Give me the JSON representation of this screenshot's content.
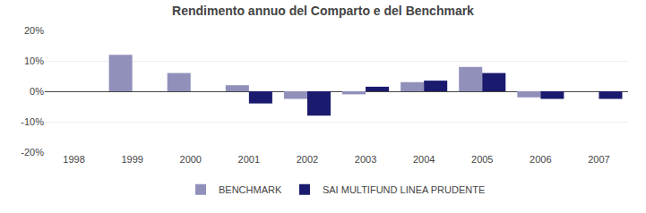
{
  "chart_data": {
    "type": "bar",
    "title": "Rendimento annuo del Comparto e del Benchmark",
    "categories": [
      "1998",
      "1999",
      "2000",
      "2001",
      "2002",
      "2003",
      "2004",
      "2005",
      "2006",
      "2007"
    ],
    "series": [
      {
        "name": "BENCHMARK",
        "color": "#9090bb",
        "values": [
          0.0,
          12.0,
          6.0,
          2.0,
          -2.5,
          -1.0,
          3.0,
          8.0,
          -2.0,
          0.0
        ]
      },
      {
        "name": "SAI MULTIFUND LINEA PRUDENTE",
        "color": "#1a1a6e",
        "values": [
          0.0,
          0.0,
          0.0,
          -4.0,
          -8.0,
          1.5,
          3.5,
          6.0,
          -2.5,
          -2.5
        ]
      }
    ],
    "ylim": [
      -20,
      20
    ],
    "yticks": [
      {
        "value": -20,
        "label": "-20%"
      },
      {
        "value": -10,
        "label": "-10%"
      },
      {
        "value": 0,
        "label": "0%"
      },
      {
        "value": 10,
        "label": "10%"
      },
      {
        "value": 20,
        "label": "20%"
      }
    ],
    "grid": true,
    "legend": "bottom"
  }
}
